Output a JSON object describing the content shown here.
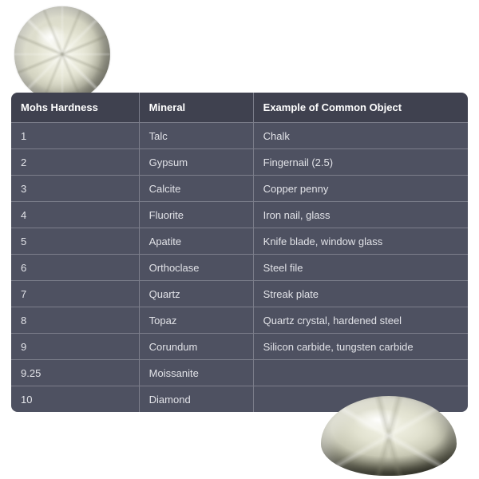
{
  "table": {
    "header_bg": "#3f414f",
    "header_color": "#ffffff",
    "body_bg": "#4e5161",
    "body_color": "#e2e3e8",
    "border_color": "#7c7e8b",
    "col_widths": [
      "28%",
      "25%",
      "47%"
    ],
    "columns": [
      "Mohs Hardness",
      "Mineral",
      "Example of Common Object"
    ],
    "rows": [
      [
        "1",
        "Talc",
        "Chalk"
      ],
      [
        "2",
        "Gypsum",
        "Fingernail (2.5)"
      ],
      [
        "3",
        "Calcite",
        "Copper penny"
      ],
      [
        "4",
        "Fluorite",
        "Iron nail, glass"
      ],
      [
        "5",
        "Apatite",
        "Knife blade, window glass"
      ],
      [
        "6",
        "Orthoclase",
        "Steel file"
      ],
      [
        "7",
        "Quartz",
        "Streak plate"
      ],
      [
        "8",
        "Topaz",
        "Quartz crystal, hardened steel"
      ],
      [
        "9",
        "Corundum",
        "Silicon carbide, tungsten carbide"
      ],
      [
        "9.25",
        "Moissanite",
        ""
      ],
      [
        "10",
        "Diamond",
        ""
      ]
    ]
  }
}
